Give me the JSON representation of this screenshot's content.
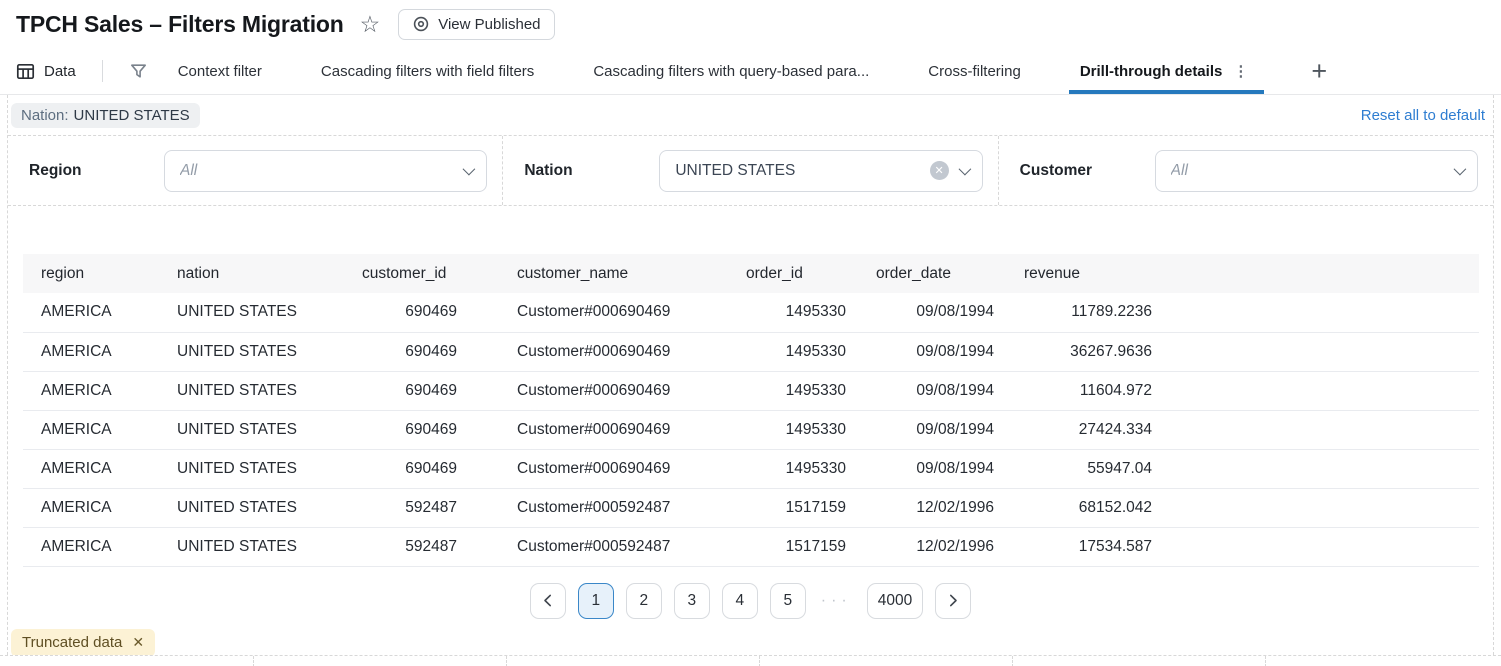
{
  "page": {
    "title": "TPCH Sales – Filters Migration",
    "view_published": "View Published"
  },
  "tabbar": {
    "data_tab": "Data",
    "tabs": [
      "Context filter",
      "Cascading filters with field filters",
      "Cascading filters with query-based para...",
      "Cross-filtering",
      "Drill-through details"
    ],
    "active_tab": "Drill-through details"
  },
  "filter_chip_bar": {
    "chip": {
      "label": "Nation:",
      "value": "UNITED STATES"
    },
    "reset_link": "Reset all to default"
  },
  "filters": [
    {
      "label": "Region",
      "value": "All",
      "is_placeholder": true,
      "clearable": false
    },
    {
      "label": "Nation",
      "value": "UNITED STATES",
      "is_placeholder": false,
      "clearable": true
    },
    {
      "label": "Customer",
      "value": "All",
      "is_placeholder": true,
      "clearable": false
    }
  ],
  "table": {
    "columns": [
      {
        "label": "region",
        "align": "left"
      },
      {
        "label": "nation",
        "align": "left"
      },
      {
        "label": "customer_id",
        "align": "right"
      },
      {
        "label": "customer_name",
        "align": "left"
      },
      {
        "label": "order_id",
        "align": "right"
      },
      {
        "label": "order_date",
        "align": "right"
      },
      {
        "label": "revenue",
        "align": "right"
      }
    ],
    "rows": [
      [
        "AMERICA",
        "UNITED STATES",
        "690469",
        "Customer#000690469",
        "1495330",
        "09/08/1994",
        "11789.2236"
      ],
      [
        "AMERICA",
        "UNITED STATES",
        "690469",
        "Customer#000690469",
        "1495330",
        "09/08/1994",
        "36267.9636"
      ],
      [
        "AMERICA",
        "UNITED STATES",
        "690469",
        "Customer#000690469",
        "1495330",
        "09/08/1994",
        "11604.972"
      ],
      [
        "AMERICA",
        "UNITED STATES",
        "690469",
        "Customer#000690469",
        "1495330",
        "09/08/1994",
        "27424.334"
      ],
      [
        "AMERICA",
        "UNITED STATES",
        "690469",
        "Customer#000690469",
        "1495330",
        "09/08/1994",
        "55947.04"
      ],
      [
        "AMERICA",
        "UNITED STATES",
        "592487",
        "Customer#000592487",
        "1517159",
        "12/02/1996",
        "68152.042"
      ],
      [
        "AMERICA",
        "UNITED STATES",
        "592487",
        "Customer#000592487",
        "1517159",
        "12/02/1996",
        "17534.587"
      ]
    ]
  },
  "pagination": {
    "pages": [
      "1",
      "2",
      "3",
      "4",
      "5"
    ],
    "active_page": "1",
    "ellipsis": "···",
    "last_page": "4000"
  },
  "truncated_badge": {
    "label": "Truncated data"
  },
  "icons": {
    "star": "☆",
    "kebab": "⋮",
    "plus": "+",
    "clear": "✕",
    "close": "✕"
  },
  "colors": {
    "accent_blue": "#2579bd",
    "link_blue": "#2e7dd1",
    "pagination_active_bg": "#e7f1fa",
    "badge_bg": "#fcf2d5",
    "badge_text": "#5f4f23",
    "header_bg": "#f7f7f8"
  }
}
